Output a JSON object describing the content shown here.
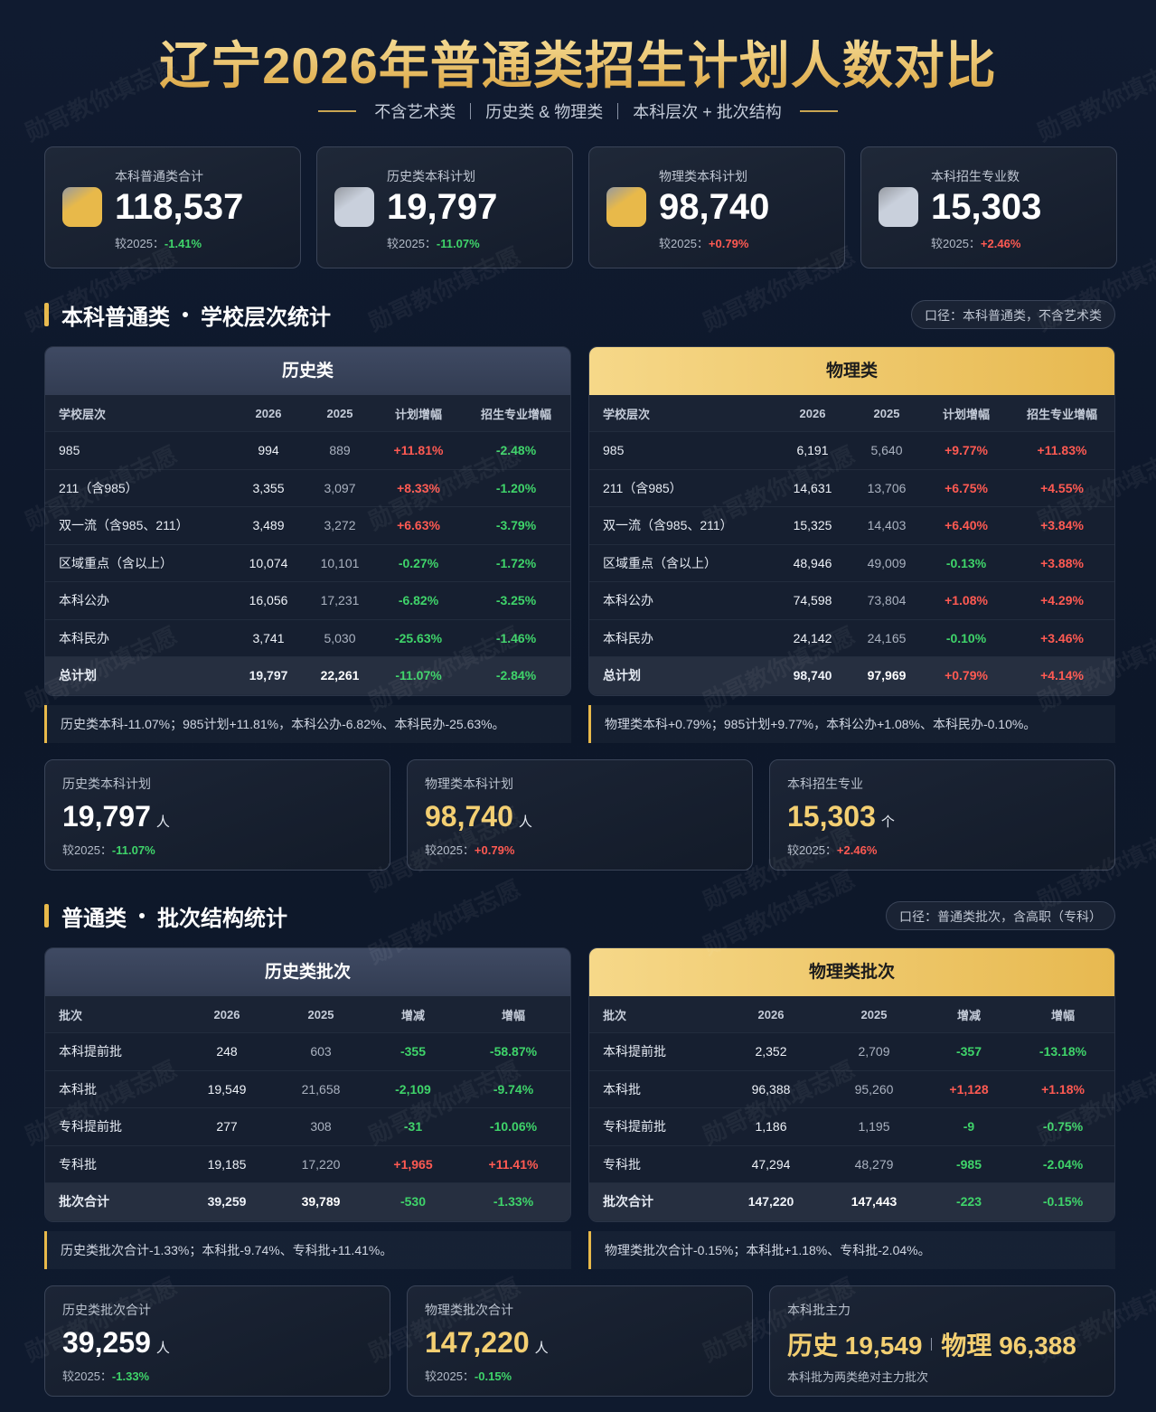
{
  "header": {
    "title": "辽宁2026年普通类招生计划人数对比",
    "subtitle_items": [
      "不含艺术类",
      "历史类 & 物理类",
      "本科层次 + 批次结构"
    ]
  },
  "watermark": "勋哥教你填志愿",
  "top_cards": [
    {
      "label": "本科普通类合计",
      "value": "118,537",
      "compare_label": "较2025：",
      "change": "-1.41%",
      "icon_color": "#e8b94a"
    },
    {
      "label": "历史类本科计划",
      "value": "19,797",
      "compare_label": "较2025：",
      "change": "-11.07%",
      "icon_color": "#c9d0dc"
    },
    {
      "label": "物理类本科计划",
      "value": "98,740",
      "compare_label": "较2025：",
      "change": "+0.79%",
      "icon_color": "#e8b94a"
    },
    {
      "label": "本科招生专业数",
      "value": "15,303",
      "compare_label": "较2025：",
      "change": "+2.46%",
      "icon_color": "#c9d0dc"
    }
  ],
  "sections": [
    {
      "title_a": "本科普通类",
      "title_b": "学校层次统计",
      "scope": "口径：本科普通类，不含艺术类",
      "tables": [
        {
          "title": "历史类",
          "header_color": "dark",
          "headers": [
            "学校层次",
            "2026",
            "2025",
            "计划增幅",
            "招生专业增幅"
          ],
          "rows": [
            [
              "985",
              "994",
              "889",
              "+11.81%",
              "-2.48%"
            ],
            [
              "211（含985）",
              "3,355",
              "3,097",
              "+8.33%",
              "-1.20%"
            ],
            [
              "双一流（含985、211）",
              "3,489",
              "3,272",
              "+6.63%",
              "-3.79%"
            ],
            [
              "区域重点（含以上）",
              "10,074",
              "10,101",
              "-0.27%",
              "-1.72%"
            ],
            [
              "本科公办",
              "16,056",
              "17,231",
              "-6.82%",
              "-3.25%"
            ],
            [
              "本科民办",
              "3,741",
              "5,030",
              "-25.63%",
              "-1.46%"
            ],
            [
              "总计划",
              "19,797",
              "22,261",
              "-11.07%",
              "-2.84%"
            ]
          ],
          "note": "历史类本科-11.07%；985计划+11.81%，本科公办-6.82%、本科民办-25.63%。"
        },
        {
          "title": "物理类",
          "header_color": "gold",
          "headers": [
            "学校层次",
            "2026",
            "2025",
            "计划增幅",
            "招生专业增幅"
          ],
          "rows": [
            [
              "985",
              "6,191",
              "5,640",
              "+9.77%",
              "+11.83%"
            ],
            [
              "211（含985）",
              "14,631",
              "13,706",
              "+6.75%",
              "+4.55%"
            ],
            [
              "双一流（含985、211）",
              "15,325",
              "14,403",
              "+6.40%",
              "+3.84%"
            ],
            [
              "区域重点（含以上）",
              "48,946",
              "49,009",
              "-0.13%",
              "+3.88%"
            ],
            [
              "本科公办",
              "74,598",
              "73,804",
              "+1.08%",
              "+4.29%"
            ],
            [
              "本科民办",
              "24,142",
              "24,165",
              "-0.10%",
              "+3.46%"
            ],
            [
              "总计划",
              "98,740",
              "97,969",
              "+0.79%",
              "+4.14%"
            ]
          ],
          "note": "物理类本科+0.79%；985计划+9.77%，本科公办+1.08%、本科民办-0.10%。"
        }
      ],
      "cards": [
        {
          "label": "历史类本科计划",
          "value": "19,797",
          "unit": "人",
          "compare_label": "较2025：",
          "change": "-11.07%",
          "color": "#ffffff"
        },
        {
          "label": "物理类本科计划",
          "value": "98,740",
          "unit": "人",
          "compare_label": "较2025：",
          "change": "+0.79%",
          "color": "#f3cf72"
        },
        {
          "label": "本科招生专业",
          "value": "15,303",
          "unit": "个",
          "compare_label": "较2025：",
          "change": "+2.46%",
          "color": "#f3cf72"
        }
      ]
    },
    {
      "title_a": "普通类",
      "title_b": "批次结构统计",
      "scope": "口径：普通类批次，含高职（专科）",
      "tables": [
        {
          "title": "历史类批次",
          "header_color": "dark",
          "headers": [
            "批次",
            "2026",
            "2025",
            "增减",
            "增幅"
          ],
          "rows": [
            [
              "本科提前批",
              "248",
              "603",
              "-355",
              "-58.87%"
            ],
            [
              "本科批",
              "19,549",
              "21,658",
              "-2,109",
              "-9.74%"
            ],
            [
              "专科提前批",
              "277",
              "308",
              "-31",
              "-10.06%"
            ],
            [
              "专科批",
              "19,185",
              "17,220",
              "+1,965",
              "+11.41%"
            ],
            [
              "批次合计",
              "39,259",
              "39,789",
              "-530",
              "-1.33%"
            ]
          ],
          "note": "历史类批次合计-1.33%；本科批-9.74%、专科批+11.41%。"
        },
        {
          "title": "物理类批次",
          "header_color": "gold",
          "headers": [
            "批次",
            "2026",
            "2025",
            "增减",
            "增幅"
          ],
          "rows": [
            [
              "本科提前批",
              "2,352",
              "2,709",
              "-357",
              "-13.18%"
            ],
            [
              "本科批",
              "96,388",
              "95,260",
              "+1,128",
              "+1.18%"
            ],
            [
              "专科提前批",
              "1,186",
              "1,195",
              "-9",
              "-0.75%"
            ],
            [
              "专科批",
              "47,294",
              "48,279",
              "-985",
              "-2.04%"
            ],
            [
              "批次合计",
              "147,220",
              "147,443",
              "-223",
              "-0.15%"
            ]
          ],
          "note": "物理类批次合计-0.15%；本科批+1.18%、专科批-2.04%。"
        }
      ],
      "cards": [
        {
          "label": "历史类批次合计",
          "value": "39,259",
          "unit": "人",
          "compare_label": "较2025：",
          "change": "-1.33%",
          "color": "#ffffff"
        },
        {
          "label": "物理类批次合计",
          "value": "147,220",
          "unit": "人",
          "compare_label": "较2025：",
          "change": "-0.15%",
          "color": "#f3cf72"
        },
        {
          "label": "本科批主力",
          "parts": [
            "历史 19,549",
            "物理 96,388"
          ],
          "note": "本科批为两类绝对主力批次"
        }
      ]
    }
  ]
}
